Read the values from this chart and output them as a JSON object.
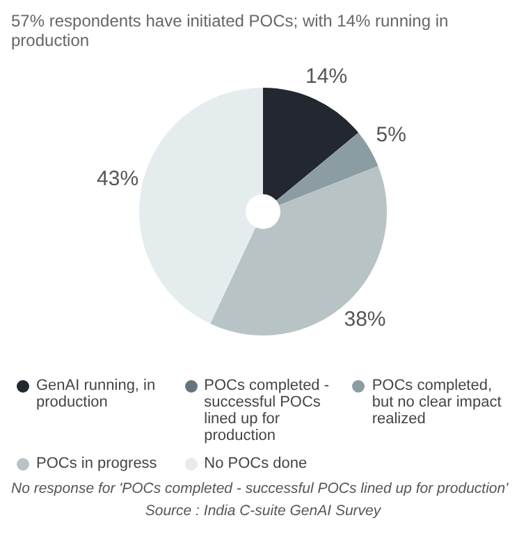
{
  "chart_data": {
    "type": "donut",
    "title": "57% respondents have initiated POCs; with 14% running in production",
    "categories": [
      "GenAI running, in production",
      "POCs completed - successful POCs lined up for production",
      "POCs completed, but no clear impact realized",
      "POCs in progress",
      "No POCs done"
    ],
    "values": [
      14,
      0,
      5,
      38,
      43
    ],
    "value_labels": [
      "14%",
      null,
      "5%",
      "38%",
      "43%"
    ],
    "colors": [
      "#23272f",
      "#66747c",
      "#8c9ca3",
      "#b8c3c5",
      "#e4ecee"
    ],
    "legend": "bottom",
    "annotations": [
      "No response for 'POCs completed - successful POCs lined up for production'",
      "Source : India C-suite GenAI Survey"
    ]
  }
}
